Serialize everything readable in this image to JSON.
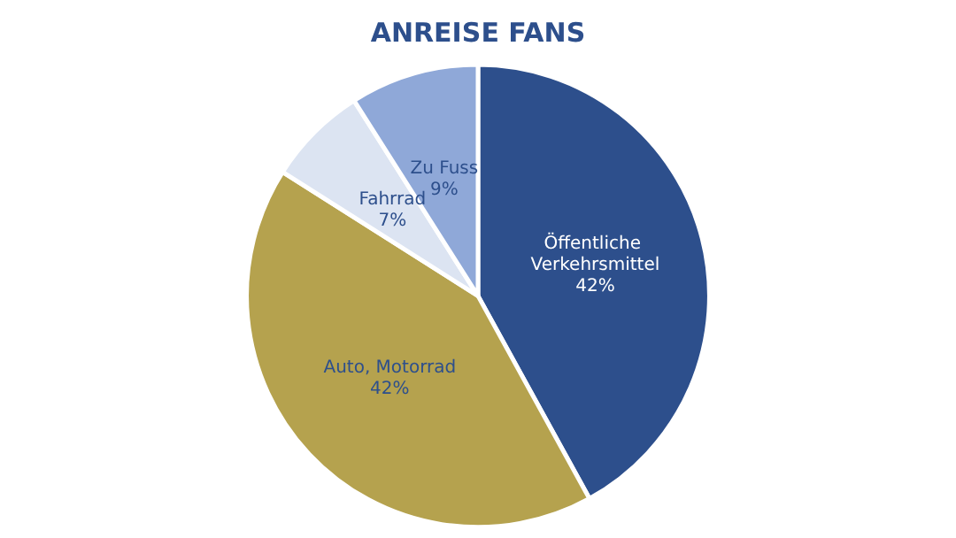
{
  "chart_data": {
    "type": "pie",
    "title": "ANREISE FANS",
    "categories": [
      "Öffentliche Verkehrsmittel",
      "Auto, Motorrad",
      "Fahrrad",
      "Zu Fuss"
    ],
    "values": [
      42,
      42,
      7,
      9
    ],
    "value_labels": [
      "42%",
      "42%",
      "7%",
      "9%"
    ],
    "colors": [
      "#2d4f8c",
      "#b5a24e",
      "#dce4f2",
      "#8fa8d8"
    ]
  }
}
